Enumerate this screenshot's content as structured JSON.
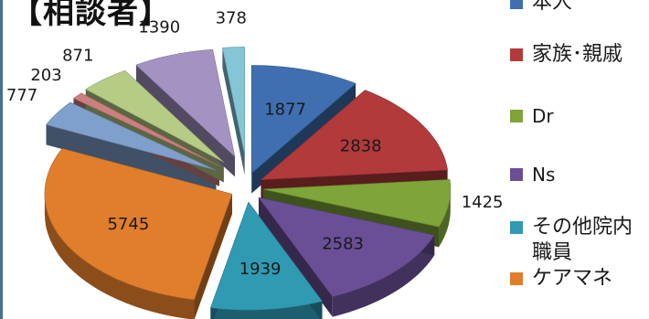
{
  "chart_data": {
    "type": "pie",
    "title": "【相談者】",
    "categories": [
      "本人",
      "家族・親戚",
      "Dr",
      "Ns",
      "その他院内職員",
      "ケアマネ",
      "",
      "",
      "",
      "",
      ""
    ],
    "values": [
      1877,
      2838,
      1425,
      2583,
      1939,
      5745,
      777,
      203,
      871,
      1390,
      378
    ],
    "colors": [
      "#3f6fb0",
      "#b23a3a",
      "#7ea43a",
      "#6a4f96",
      "#2f9ab2",
      "#e07e2c",
      "#7f9fcc",
      "#cc7f7f",
      "#b6cc85",
      "#a493c2",
      "#84c6d6"
    ],
    "legend_position": "right"
  },
  "legend": [
    {
      "label": "本人",
      "color": "#3f6fb0"
    },
    {
      "label": "家族･親戚",
      "color": "#b23a3a"
    },
    {
      "label": "Dr",
      "color": "#7ea43a"
    },
    {
      "label": "Ns",
      "color": "#6a4f96"
    },
    {
      "label": "その他院内",
      "label2": "職員",
      "color": "#2f9ab2"
    },
    {
      "label": "ケアマネ",
      "color": "#e07e2c"
    }
  ]
}
